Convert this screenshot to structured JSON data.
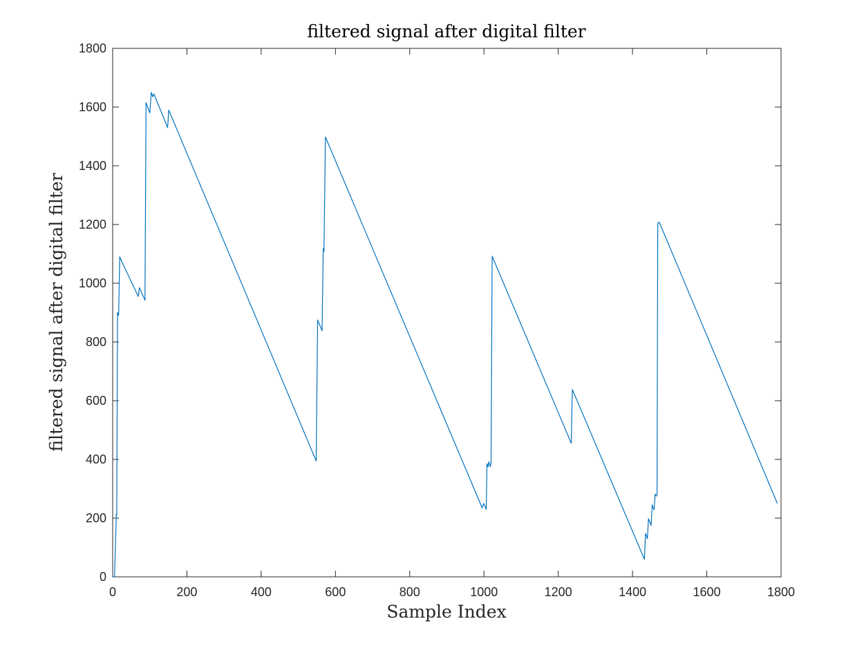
{
  "chart_data": {
    "type": "line",
    "title": "filtered signal after digital filter",
    "xlabel": "Sample Index",
    "ylabel": "filtered signal after digital filter",
    "xlim": [
      0,
      1800
    ],
    "ylim": [
      0,
      1800
    ],
    "xticks": [
      0,
      200,
      400,
      600,
      800,
      1000,
      1200,
      1400,
      1600,
      1800
    ],
    "yticks": [
      0,
      200,
      400,
      600,
      800,
      1000,
      1200,
      1400,
      1600,
      1800
    ],
    "xtick_labels": [
      "0",
      "200",
      "400",
      "600",
      "800",
      "1000",
      "1200",
      "1400",
      "1600",
      "1800"
    ],
    "ytick_labels": [
      "0",
      "200",
      "400",
      "600",
      "800",
      "1000",
      "1200",
      "1400",
      "1600",
      "1800"
    ],
    "grid": false,
    "box": true,
    "series": [
      {
        "color": "#0072BD",
        "x": [
          0,
          5,
          10,
          11,
          13,
          16,
          19,
          24,
          69,
          72,
          87,
          90,
          100,
          104,
          108,
          111,
          148,
          151,
          548,
          552,
          564,
          567,
          569,
          573,
          995,
          999,
          1001,
          1006,
          1008,
          1011,
          1013,
          1017,
          1019,
          1022,
          1235,
          1238,
          1432,
          1435,
          1440,
          1443,
          1450,
          1453,
          1458,
          1461,
          1464,
          1466,
          1468,
          1472,
          1790
        ],
        "y": [
          0,
          0,
          215,
          210,
          900,
          890,
          1090,
          1075,
          955,
          985,
          942,
          1615,
          1580,
          1650,
          1635,
          1645,
          1530,
          1590,
          395,
          875,
          838,
          1118,
          1108,
          1498,
          235,
          250,
          245,
          230,
          385,
          375,
          392,
          375,
          388,
          1092,
          455,
          638,
          60,
          148,
          130,
          198,
          175,
          245,
          228,
          282,
          275,
          280,
          1205,
          1208,
          250
        ]
      }
    ]
  }
}
